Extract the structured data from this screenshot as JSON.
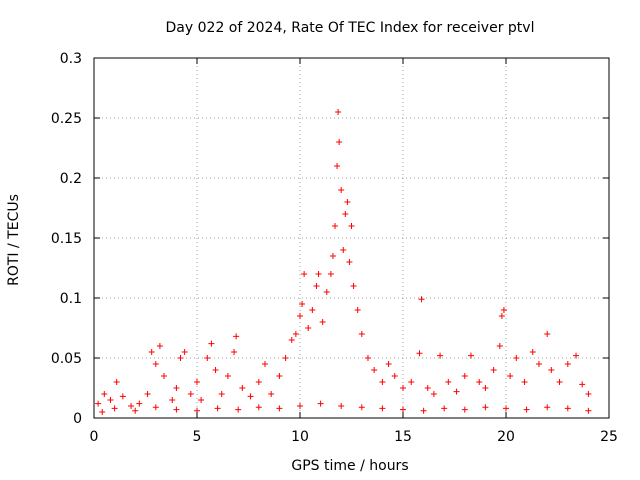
{
  "chart_data": {
    "type": "scatter",
    "title": "Day 022 of 2024, Rate Of TEC Index for receiver ptvl",
    "xlabel": "GPS time / hours",
    "ylabel": "ROTI / TECUs",
    "xlim": [
      0,
      25
    ],
    "ylim": [
      0,
      0.3
    ],
    "x_ticks": [
      0,
      5,
      10,
      15,
      20,
      25
    ],
    "x_tick_labels": [
      "0",
      "5",
      "10",
      "15",
      "20",
      "25"
    ],
    "y_ticks": [
      0,
      0.05,
      0.1,
      0.15,
      0.2,
      0.25,
      0.3
    ],
    "y_tick_labels": [
      "0",
      "0.05",
      "0.1",
      "0.15",
      "0.2",
      "0.25",
      "0.3"
    ],
    "grid": true,
    "marker": "+",
    "series": [
      {
        "color": "#ff0000",
        "points": [
          [
            0.2,
            0.012
          ],
          [
            0.5,
            0.02
          ],
          [
            0.8,
            0.015
          ],
          [
            1.1,
            0.03
          ],
          [
            1.4,
            0.018
          ],
          [
            1.8,
            0.01
          ],
          [
            2.2,
            0.012
          ],
          [
            2.6,
            0.02
          ],
          [
            2.8,
            0.055
          ],
          [
            3.0,
            0.045
          ],
          [
            3.2,
            0.06
          ],
          [
            3.4,
            0.035
          ],
          [
            3.8,
            0.015
          ],
          [
            4.0,
            0.025
          ],
          [
            4.2,
            0.05
          ],
          [
            4.4,
            0.055
          ],
          [
            4.7,
            0.02
          ],
          [
            5.0,
            0.03
          ],
          [
            5.2,
            0.015
          ],
          [
            5.5,
            0.05
          ],
          [
            5.7,
            0.062
          ],
          [
            5.9,
            0.04
          ],
          [
            6.2,
            0.02
          ],
          [
            6.5,
            0.035
          ],
          [
            6.8,
            0.055
          ],
          [
            6.9,
            0.068
          ],
          [
            7.2,
            0.025
          ],
          [
            7.6,
            0.018
          ],
          [
            8.0,
            0.03
          ],
          [
            8.3,
            0.045
          ],
          [
            8.6,
            0.02
          ],
          [
            9.0,
            0.035
          ],
          [
            9.3,
            0.05
          ],
          [
            9.6,
            0.065
          ],
          [
            9.8,
            0.07
          ],
          [
            10.0,
            0.085
          ],
          [
            10.1,
            0.095
          ],
          [
            10.2,
            0.12
          ],
          [
            10.4,
            0.075
          ],
          [
            10.6,
            0.09
          ],
          [
            10.8,
            0.11
          ],
          [
            10.9,
            0.12
          ],
          [
            11.1,
            0.08
          ],
          [
            11.3,
            0.105
          ],
          [
            11.5,
            0.12
          ],
          [
            11.6,
            0.135
          ],
          [
            11.7,
            0.16
          ],
          [
            11.8,
            0.21
          ],
          [
            11.85,
            0.255
          ],
          [
            11.9,
            0.23
          ],
          [
            12.0,
            0.19
          ],
          [
            12.1,
            0.14
          ],
          [
            12.2,
            0.17
          ],
          [
            12.3,
            0.18
          ],
          [
            12.4,
            0.13
          ],
          [
            12.5,
            0.16
          ],
          [
            12.6,
            0.11
          ],
          [
            12.8,
            0.09
          ],
          [
            13.0,
            0.07
          ],
          [
            13.3,
            0.05
          ],
          [
            13.6,
            0.04
          ],
          [
            14.0,
            0.03
          ],
          [
            14.3,
            0.045
          ],
          [
            14.6,
            0.035
          ],
          [
            15.0,
            0.025
          ],
          [
            15.4,
            0.03
          ],
          [
            15.8,
            0.054
          ],
          [
            15.9,
            0.099
          ],
          [
            16.2,
            0.025
          ],
          [
            16.5,
            0.02
          ],
          [
            16.8,
            0.052
          ],
          [
            17.2,
            0.03
          ],
          [
            17.6,
            0.022
          ],
          [
            18.0,
            0.035
          ],
          [
            18.3,
            0.052
          ],
          [
            18.7,
            0.03
          ],
          [
            19.0,
            0.025
          ],
          [
            19.4,
            0.04
          ],
          [
            19.7,
            0.06
          ],
          [
            19.8,
            0.085
          ],
          [
            19.9,
            0.09
          ],
          [
            20.2,
            0.035
          ],
          [
            20.5,
            0.05
          ],
          [
            20.9,
            0.03
          ],
          [
            21.3,
            0.055
          ],
          [
            21.6,
            0.045
          ],
          [
            22.0,
            0.07
          ],
          [
            22.2,
            0.04
          ],
          [
            22.6,
            0.03
          ],
          [
            23.0,
            0.045
          ],
          [
            23.4,
            0.052
          ],
          [
            23.7,
            0.028
          ],
          [
            24.0,
            0.02
          ],
          [
            0.4,
            0.005
          ],
          [
            1.0,
            0.008
          ],
          [
            2.0,
            0.006
          ],
          [
            3.0,
            0.009
          ],
          [
            4.0,
            0.007
          ],
          [
            5.0,
            0.006
          ],
          [
            6.0,
            0.008
          ],
          [
            7.0,
            0.007
          ],
          [
            8.0,
            0.009
          ],
          [
            9.0,
            0.008
          ],
          [
            10.0,
            0.01
          ],
          [
            11.0,
            0.012
          ],
          [
            12.0,
            0.01
          ],
          [
            13.0,
            0.009
          ],
          [
            14.0,
            0.008
          ],
          [
            15.0,
            0.007
          ],
          [
            16.0,
            0.006
          ],
          [
            17.0,
            0.008
          ],
          [
            18.0,
            0.007
          ],
          [
            19.0,
            0.009
          ],
          [
            20.0,
            0.008
          ],
          [
            21.0,
            0.007
          ],
          [
            22.0,
            0.009
          ],
          [
            23.0,
            0.008
          ],
          [
            24.0,
            0.006
          ]
        ]
      }
    ]
  }
}
